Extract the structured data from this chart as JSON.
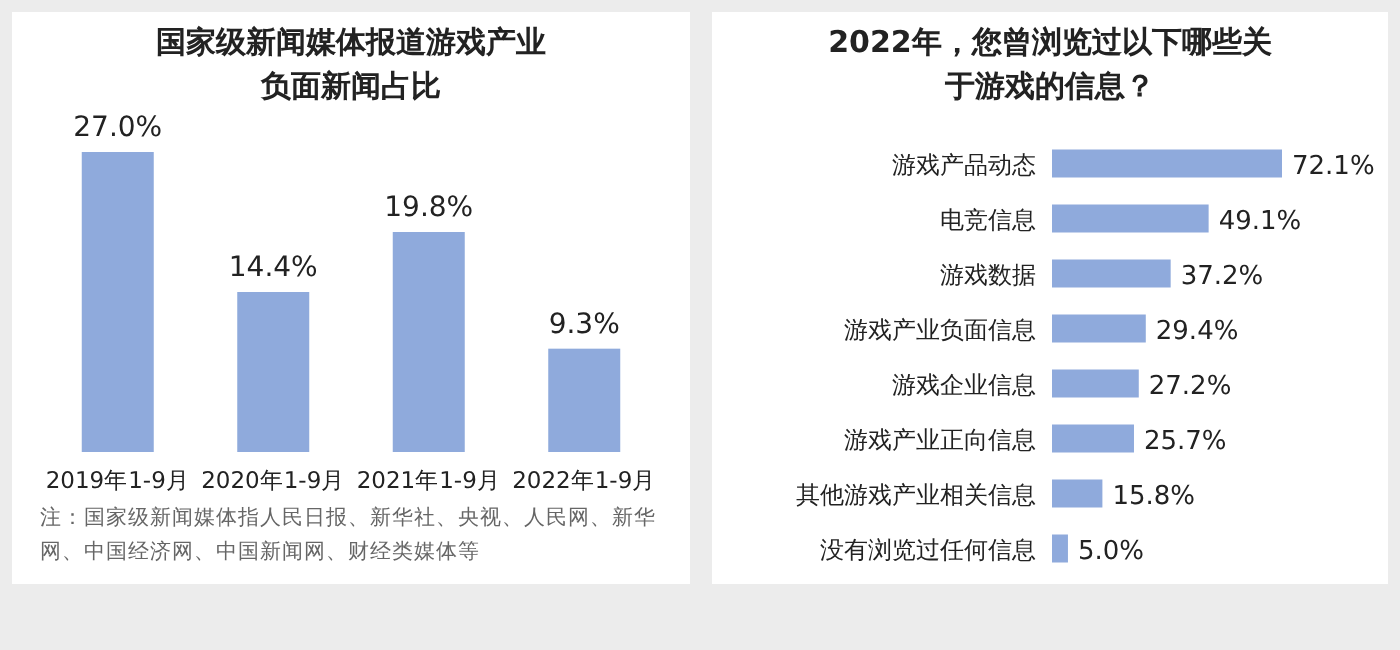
{
  "chart_data": [
    {
      "type": "bar",
      "title": "国家级新闻媒体报道游戏产业负面新闻占比",
      "categories": [
        "2019年1-9月",
        "2020年1-9月",
        "2021年1-9月",
        "2022年1-9月"
      ],
      "values": [
        27.0,
        14.4,
        19.8,
        9.3
      ],
      "value_labels": [
        "27.0%",
        "14.4%",
        "19.8%",
        "9.3%"
      ],
      "color": "#8faadc",
      "annotations": [
        "注：国家级新闻媒体指人民日报、新华社、央视、人民网、新华网、中国经济网、中国新闻网、财经类媒体等"
      ]
    },
    {
      "type": "bar",
      "orientation": "horizontal",
      "title": "2022年，您曾浏览过以下哪些关于游戏的信息？",
      "categories": [
        "游戏产品动态",
        "电竞信息",
        "游戏数据",
        "游戏产业负面信息",
        "游戏企业信息",
        "游戏产业正向信息",
        "其他游戏产业相关信息",
        "没有浏览过任何信息"
      ],
      "values": [
        72.1,
        49.1,
        37.2,
        29.4,
        27.2,
        25.7,
        15.8,
        5.0
      ],
      "value_labels": [
        "72.1%",
        "49.1%",
        "37.2%",
        "29.4%",
        "27.2%",
        "25.7%",
        "15.8%",
        "5.0%"
      ],
      "color": "#8faadc"
    }
  ]
}
